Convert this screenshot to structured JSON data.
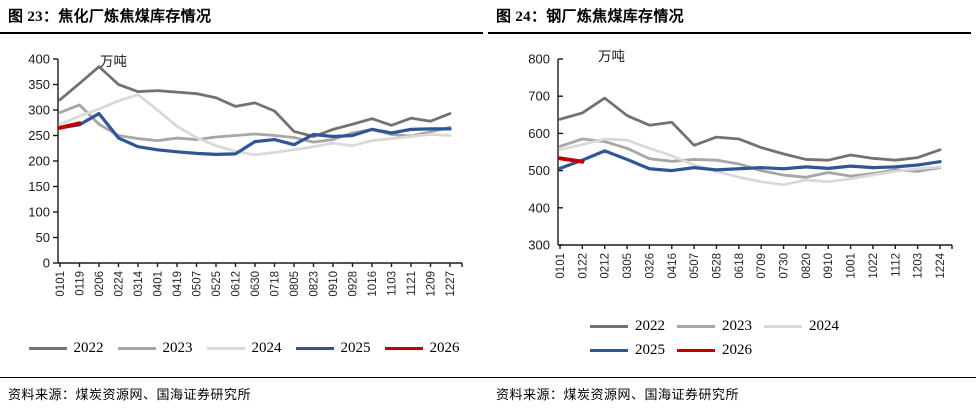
{
  "page": {
    "background": "#ffffff",
    "series_colors": {
      "2022": "#767171",
      "2023": "#A6A6A6",
      "2024": "#D9D9D9",
      "2025": "#2F5597",
      "2026": "#C00000"
    }
  },
  "figures": [
    {
      "source": "资料来源：煤炭资源网、国海证券研究所"
    },
    {
      "source": "资料来源：煤炭资源网、国海证券研究所"
    }
  ],
  "chart_data": [
    {
      "type": "line",
      "title": "图 23：焦化厂炼焦煤库存情况",
      "ylabel": "万吨",
      "xlabel": "",
      "ylim": [
        0,
        400
      ],
      "ytick_step": 50,
      "grid": false,
      "legend_position": "bottom",
      "categories": [
        "0101",
        "0119",
        "0206",
        "0224",
        "0314",
        "0401",
        "0419",
        "0507",
        "0525",
        "0612",
        "0630",
        "0718",
        "0805",
        "0823",
        "0910",
        "0928",
        "1016",
        "1103",
        "1121",
        "1209",
        "1227"
      ],
      "series": [
        {
          "name": "2022",
          "color": "#767171",
          "values": [
            320,
            352,
            385,
            350,
            336,
            338,
            335,
            332,
            324,
            307,
            314,
            298,
            258,
            248,
            262,
            272,
            283,
            270,
            284,
            278,
            293
          ]
        },
        {
          "name": "2023",
          "color": "#A6A6A6",
          "values": [
            295,
            310,
            272,
            250,
            244,
            240,
            245,
            242,
            247,
            250,
            253,
            250,
            246,
            237,
            242,
            255,
            262,
            252,
            249,
            257,
            266
          ]
        },
        {
          "name": "2024",
          "color": "#D9D9D9",
          "values": [
            272,
            288,
            302,
            318,
            330,
            300,
            268,
            246,
            230,
            219,
            212,
            217,
            222,
            228,
            235,
            230,
            240,
            244,
            248,
            252,
            250
          ]
        },
        {
          "name": "2025",
          "color": "#2F5597",
          "values": [
            265,
            271,
            293,
            245,
            228,
            222,
            218,
            215,
            213,
            214,
            238,
            242,
            232,
            252,
            248,
            250,
            262,
            255,
            262,
            263,
            263
          ]
        },
        {
          "name": "2026",
          "color": "#C00000",
          "values": [
            265,
            274
          ]
        }
      ]
    },
    {
      "type": "line",
      "title": "图 24：钢厂炼焦煤库存情况",
      "ylabel": "万吨",
      "xlabel": "",
      "ylim": [
        300,
        800
      ],
      "ytick_step": 100,
      "grid": false,
      "legend_position": "bottom",
      "categories": [
        "0101",
        "0122",
        "0212",
        "0305",
        "0326",
        "0416",
        "0507",
        "0528",
        "0618",
        "0709",
        "0730",
        "0820",
        "0910",
        "1001",
        "1022",
        "1112",
        "1203",
        "1224"
      ],
      "series": [
        {
          "name": "2022",
          "color": "#767171",
          "values": [
            638,
            655,
            695,
            648,
            622,
            630,
            568,
            590,
            585,
            562,
            545,
            530,
            528,
            542,
            533,
            528,
            535,
            556
          ]
        },
        {
          "name": "2023",
          "color": "#A6A6A6",
          "values": [
            565,
            585,
            578,
            560,
            532,
            525,
            530,
            528,
            518,
            500,
            488,
            482,
            495,
            485,
            492,
            502,
            498,
            508
          ]
        },
        {
          "name": "2024",
          "color": "#D9D9D9",
          "values": [
            556,
            570,
            585,
            582,
            560,
            540,
            515,
            498,
            482,
            470,
            462,
            475,
            470,
            478,
            488,
            498,
            505,
            510
          ]
        },
        {
          "name": "2025",
          "color": "#2F5597",
          "values": [
            506,
            528,
            553,
            530,
            505,
            500,
            508,
            502,
            505,
            508,
            505,
            510,
            506,
            512,
            508,
            510,
            515,
            524
          ]
        },
        {
          "name": "2026",
          "color": "#C00000",
          "values": [
            533,
            524
          ]
        }
      ]
    }
  ]
}
